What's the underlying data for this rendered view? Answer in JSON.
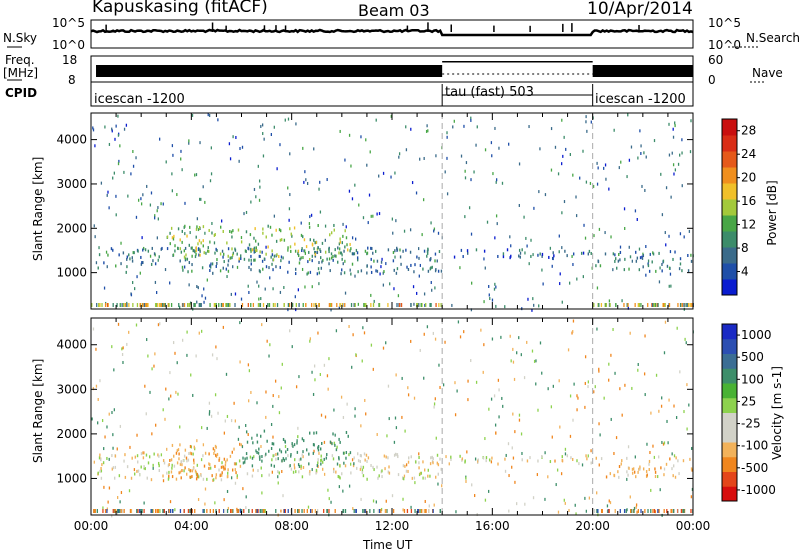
{
  "header": {
    "radar": "Kapuskasing (fitACF)",
    "beam": "Beam 03",
    "date": "10/Apr/2014"
  },
  "panels": {
    "nsky": {
      "label": "N.Sky",
      "ticks": [
        "10^5",
        "10^0"
      ]
    },
    "nsearch": {
      "label": "N.Search",
      "ticks": [
        "10^5",
        "10^0"
      ]
    },
    "freq": {
      "label_top": "Freq.",
      "label_unit": "[MHz]",
      "ticks": [
        "18",
        "8"
      ]
    },
    "nave": {
      "label": "Nave",
      "ticks": [
        "60",
        "0"
      ]
    },
    "cpid": {
      "label": "CPID",
      "segments": [
        "icescan -1200",
        "tau (fast) 503",
        "icescan -1200"
      ]
    }
  },
  "colors": {
    "power": [
      "#0a1ccf",
      "#1f4fa8",
      "#3a6b8a",
      "#3c8c6a",
      "#48a646",
      "#a3c93b",
      "#f0c02a",
      "#f08f1e",
      "#e5591a",
      "#d92d16",
      "#c90f0f"
    ],
    "velocity": [
      "#d70d0d",
      "#e4451a",
      "#f0861e",
      "#f2b25a",
      "#d2d2c8",
      "#d2d2c8",
      "#8dd24e",
      "#49b234",
      "#3d8e6a",
      "#3b6e94",
      "#2c4fb2",
      "#1a2ac4"
    ]
  },
  "chart_data": [
    {
      "type": "heatmap",
      "title": "Power",
      "ylabel": "Slant Range [km]",
      "xlabel": "Time UT",
      "ylim": [
        180,
        4600
      ],
      "x_ticks": [
        "00:00",
        "04:00",
        "08:00",
        "12:00",
        "16:00",
        "20:00",
        "00:00"
      ],
      "y_ticks": [
        1000,
        2000,
        3000,
        4000
      ],
      "colorbar": {
        "label": "Power [dB]",
        "ticks": [
          "4",
          "8",
          "12",
          "16",
          "20",
          "24",
          "28"
        ],
        "range": [
          0,
          30
        ]
      },
      "scatter_bands": [
        {
          "t0": 0.2,
          "t1": 14.0,
          "r0": 1000,
          "r1": 1600,
          "value": 8
        },
        {
          "t0": 3.0,
          "t1": 10.5,
          "r0": 1300,
          "r1": 2100,
          "value": 14
        },
        {
          "t0": 14.0,
          "t1": 20.0,
          "r0": 1350,
          "r1": 1550,
          "value": 6
        },
        {
          "t0": 20.0,
          "t1": 24.0,
          "r0": 1050,
          "r1": 1500,
          "value": 8
        }
      ]
    },
    {
      "type": "heatmap",
      "title": "Velocity",
      "ylabel": "Slant Range [km]",
      "xlabel": "Time UT",
      "ylim": [
        180,
        4600
      ],
      "x_ticks": [
        "00:00",
        "04:00",
        "08:00",
        "12:00",
        "16:00",
        "20:00",
        "00:00"
      ],
      "y_ticks": [
        1000,
        2000,
        3000,
        4000
      ],
      "colorbar": {
        "label": "Velocity [m s-1]",
        "ticks": [
          "1000",
          "500",
          "100",
          "25",
          "-25",
          "-100",
          "-500",
          "-1000"
        ]
      },
      "scatter_bands": [
        {
          "t0": 0.2,
          "t1": 14.0,
          "r0": 1000,
          "r1": 1600,
          "value": 0
        },
        {
          "t0": 3.0,
          "t1": 6.0,
          "r0": 1000,
          "r1": 1800,
          "value": -100
        },
        {
          "t0": 6.0,
          "t1": 10.5,
          "r0": 1300,
          "r1": 2100,
          "value": 150
        },
        {
          "t0": 14.0,
          "t1": 20.0,
          "r0": 1350,
          "r1": 1550,
          "value": 0
        },
        {
          "t0": 20.0,
          "t1": 24.0,
          "r0": 1050,
          "r1": 1500,
          "value": -60
        }
      ]
    }
  ]
}
